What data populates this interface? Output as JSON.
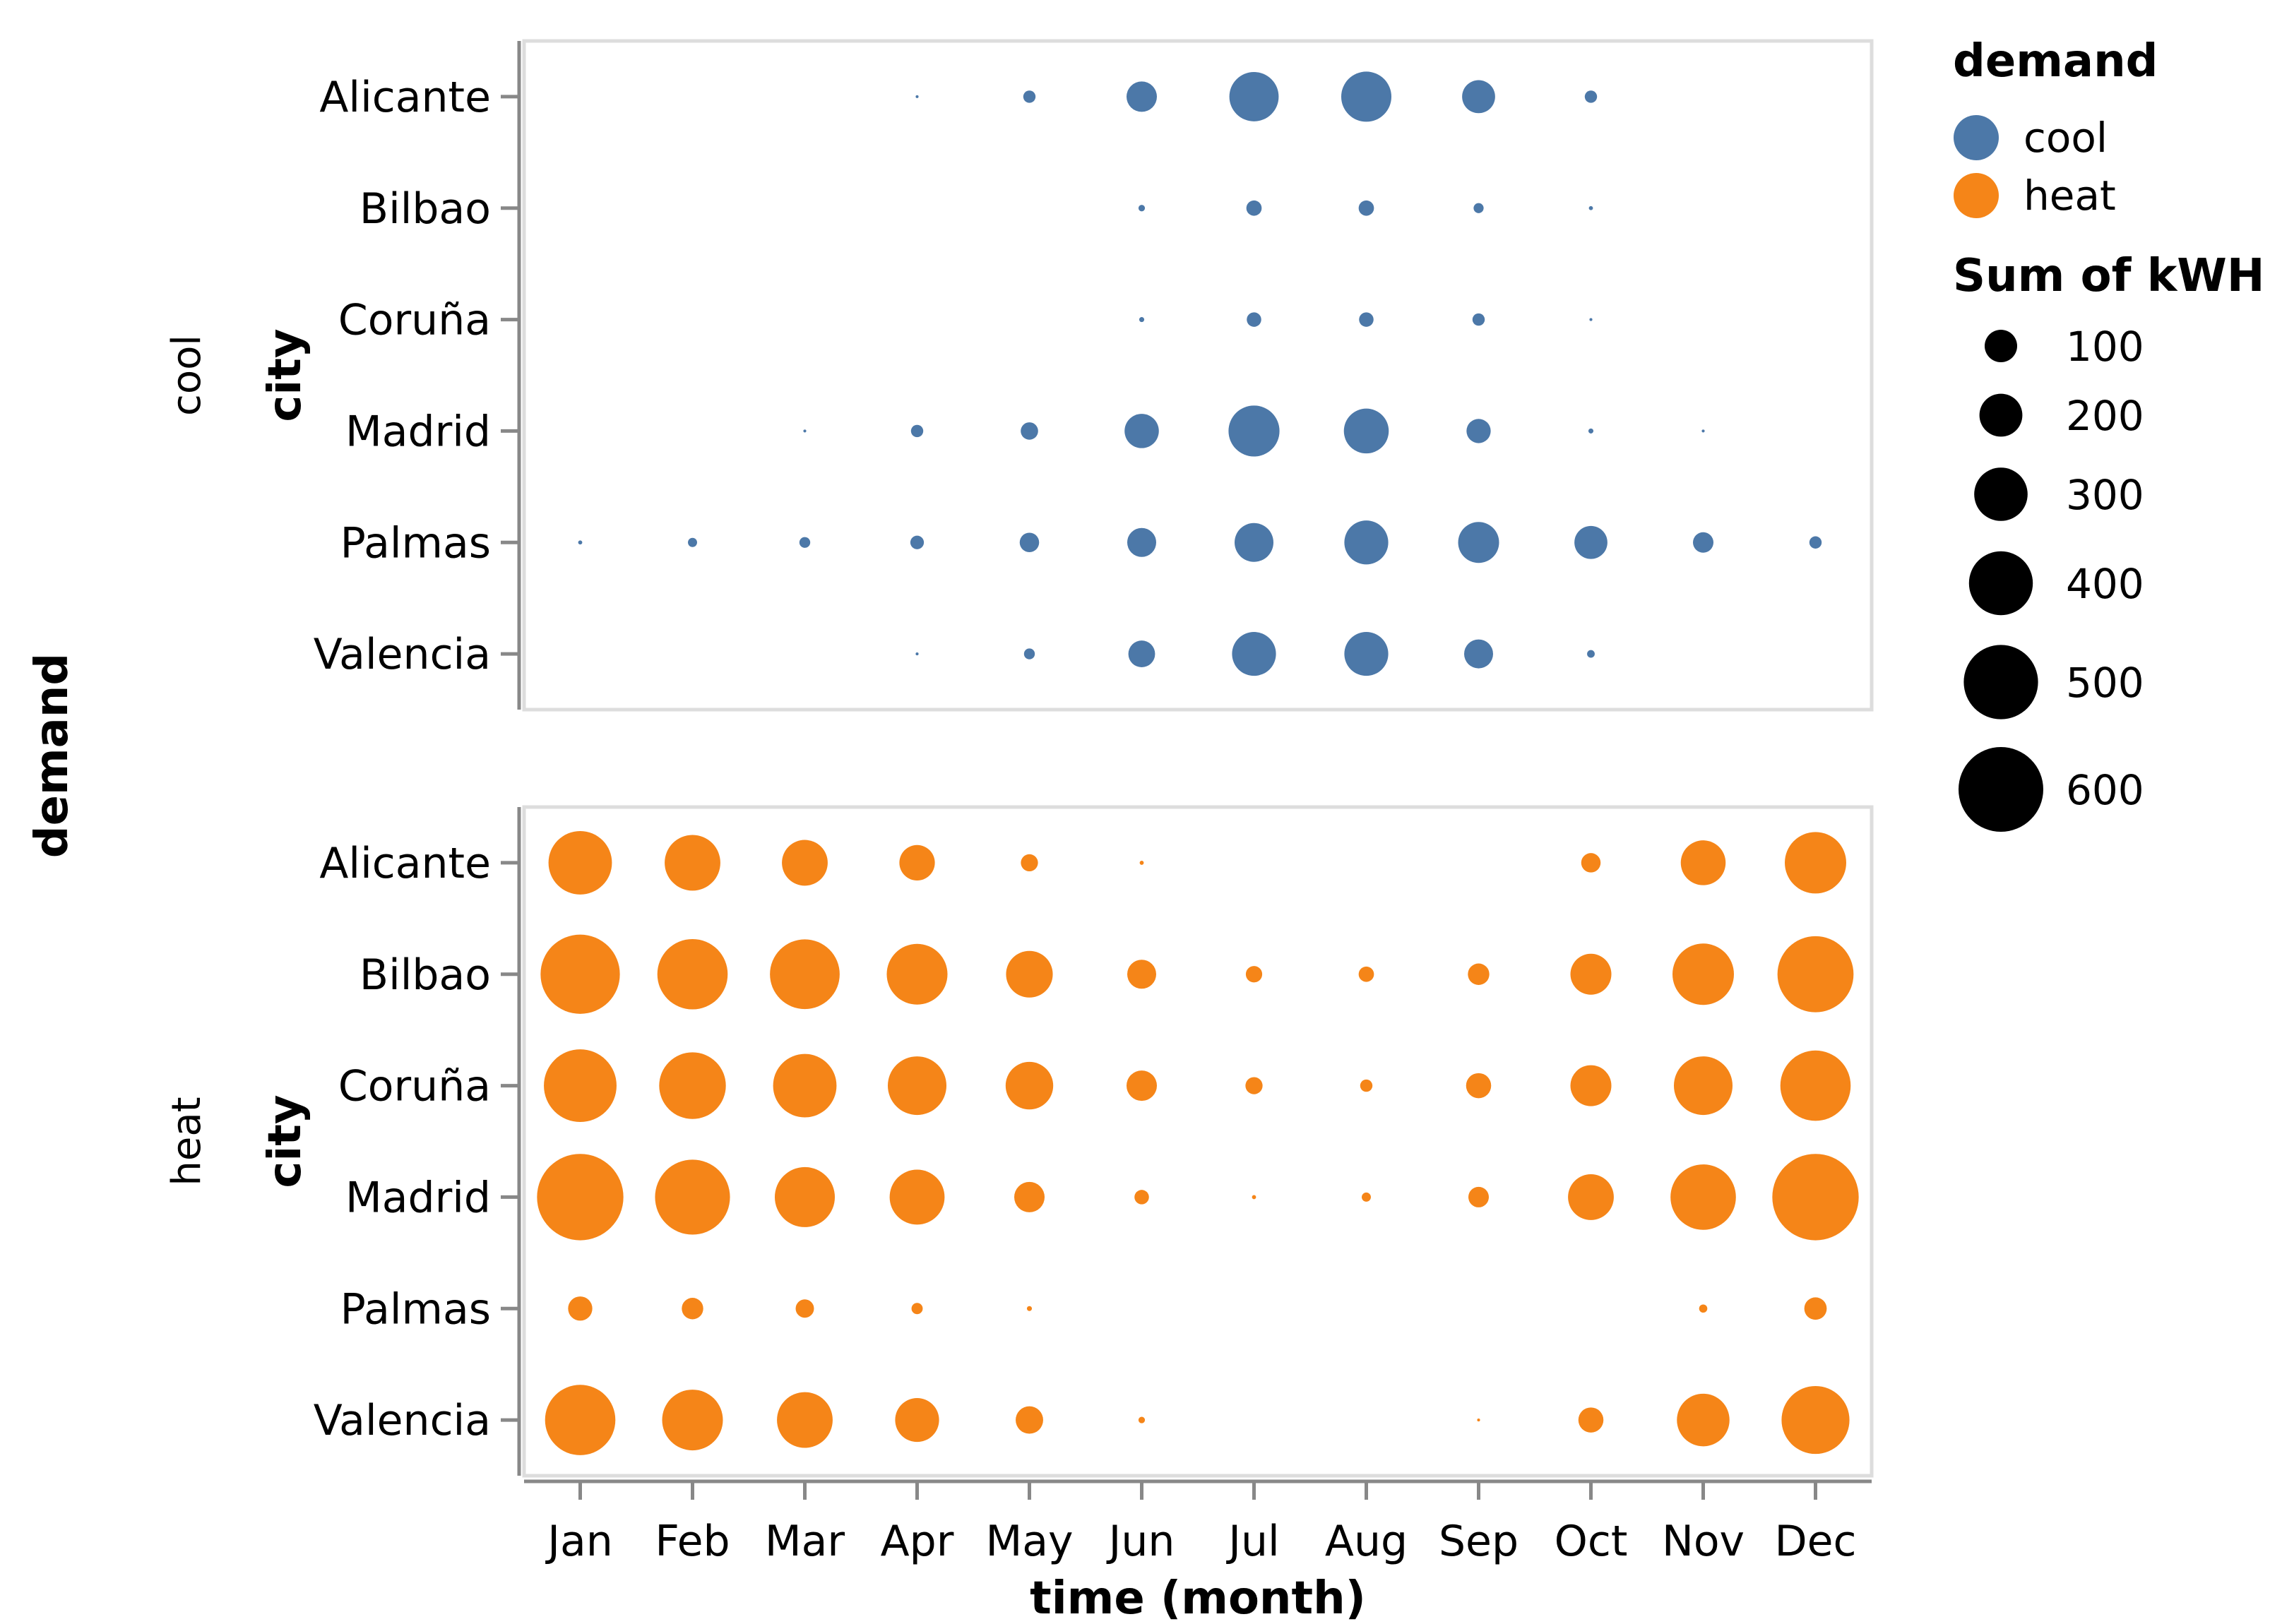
{
  "chart_data": {
    "type": "scatter",
    "subtype": "bubble-faceted",
    "x_title": "time (month)",
    "y_title": "city",
    "row_title": "demand",
    "months": [
      "Jan",
      "Feb",
      "Mar",
      "Apr",
      "May",
      "Jun",
      "Jul",
      "Aug",
      "Sep",
      "Oct",
      "Nov",
      "Dec"
    ],
    "cities": [
      "Alicante",
      "Bilbao",
      "Coruña",
      "Madrid",
      "Palmas",
      "Valencia"
    ],
    "facets": [
      {
        "name": "cool",
        "color": "#4c78a8",
        "values": {
          "Alicante": [
            0,
            0,
            0,
            1,
            18,
            110,
            290,
            300,
            130,
            18,
            0,
            0
          ],
          "Bilbao": [
            0,
            0,
            0,
            0,
            0,
            5,
            28,
            28,
            12,
            2,
            0,
            0
          ],
          "Coruña": [
            0,
            0,
            0,
            0,
            0,
            3,
            25,
            25,
            18,
            1,
            0,
            0
          ],
          "Madrid": [
            0,
            0,
            1,
            18,
            36,
            140,
            310,
            240,
            70,
            3,
            1,
            0
          ],
          "Palmas": [
            2,
            10,
            14,
            22,
            45,
            100,
            180,
            230,
            200,
            130,
            50,
            18
          ],
          "Valencia": [
            0,
            0,
            0,
            1,
            14,
            85,
            230,
            230,
            100,
            7,
            0,
            0
          ]
        }
      },
      {
        "name": "heat",
        "color": "#f58518",
        "values": {
          "Alicante": [
            480,
            370,
            250,
            150,
            35,
            2,
            0,
            0,
            0,
            45,
            240,
            450
          ],
          "Bilbao": [
            750,
            590,
            580,
            440,
            260,
            100,
            32,
            28,
            55,
            200,
            450,
            690
          ],
          "Coruña": [
            630,
            530,
            480,
            410,
            270,
            110,
            35,
            18,
            75,
            200,
            410,
            590
          ],
          "Madrid": [
            890,
            670,
            430,
            360,
            110,
            25,
            2,
            10,
            50,
            250,
            510,
            890
          ],
          "Palmas": [
            70,
            55,
            40,
            15,
            3,
            0,
            0,
            0,
            0,
            0,
            8,
            60
          ],
          "Valencia": [
            590,
            440,
            370,
            230,
            90,
            5,
            0,
            0,
            1,
            75,
            330,
            550
          ]
        }
      }
    ],
    "legend": {
      "color_title": "demand",
      "color_entries": [
        {
          "label": "cool",
          "color": "#4c78a8"
        },
        {
          "label": "heat",
          "color": "#f58518"
        }
      ],
      "size_title": "Sum of kWH",
      "size_entries": [
        100,
        200,
        300,
        400,
        500,
        600
      ]
    }
  }
}
